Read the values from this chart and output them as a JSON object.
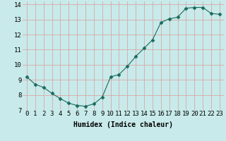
{
  "x": [
    0,
    1,
    2,
    3,
    4,
    5,
    6,
    7,
    8,
    9,
    10,
    11,
    12,
    13,
    14,
    15,
    16,
    17,
    18,
    19,
    20,
    21,
    22,
    23
  ],
  "y": [
    9.2,
    8.7,
    8.5,
    8.1,
    7.75,
    7.45,
    7.3,
    7.25,
    7.4,
    7.85,
    9.2,
    9.35,
    9.9,
    10.55,
    11.1,
    11.65,
    12.8,
    13.05,
    13.15,
    13.75,
    13.8,
    13.8,
    13.4,
    13.35
  ],
  "xlim": [
    -0.5,
    23.5
  ],
  "ylim": [
    7.0,
    14.2
  ],
  "yticks": [
    7,
    8,
    9,
    10,
    11,
    12,
    13,
    14
  ],
  "xticks": [
    0,
    1,
    2,
    3,
    4,
    5,
    6,
    7,
    8,
    9,
    10,
    11,
    12,
    13,
    14,
    15,
    16,
    17,
    18,
    19,
    20,
    21,
    22,
    23
  ],
  "xlabel": "Humidex (Indice chaleur)",
  "line_color": "#1a6b5e",
  "marker": "D",
  "marker_size": 2.5,
  "background_color": "#c8eaea",
  "grid_color": "#d8a8a8",
  "label_fontsize": 7,
  "tick_fontsize": 6.5
}
